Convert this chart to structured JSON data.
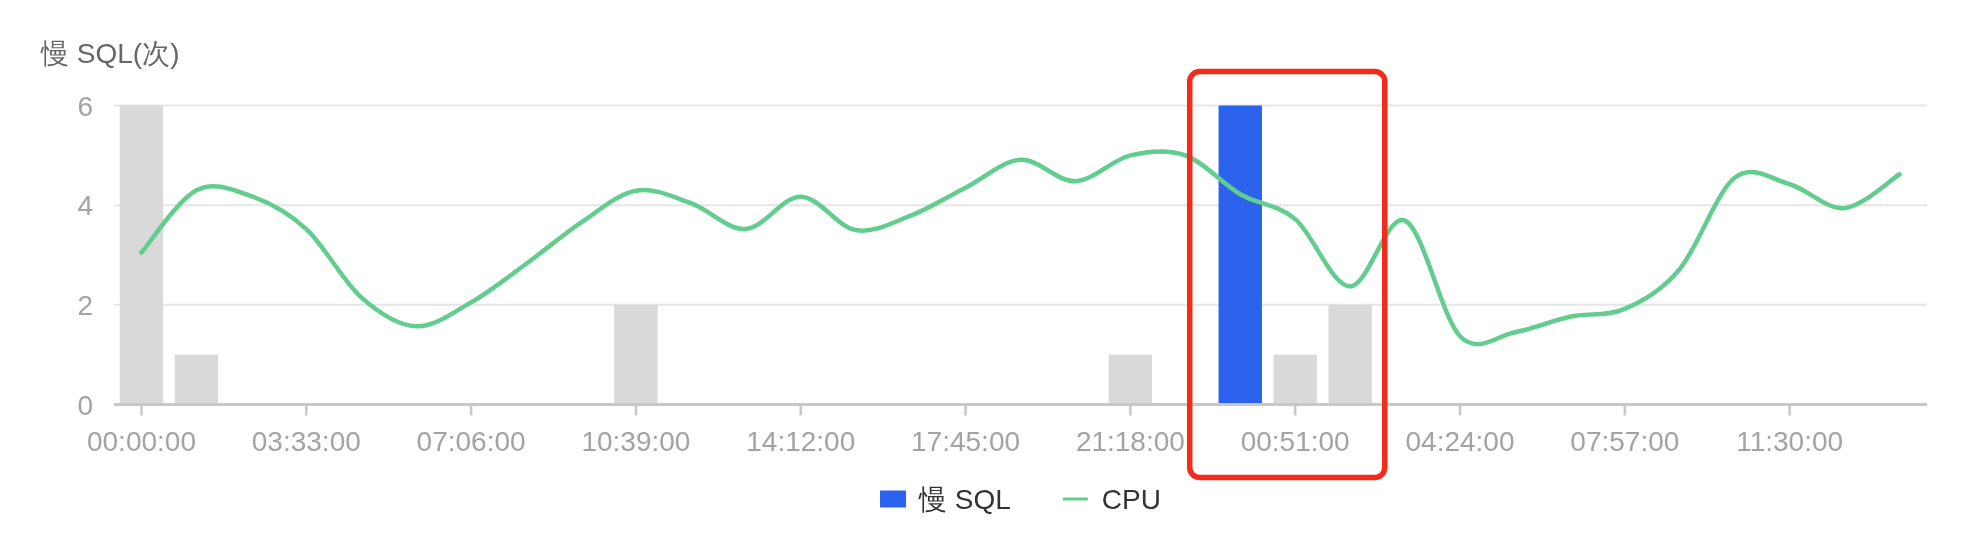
{
  "chart_data": {
    "type": "bar",
    "ylabel": "慢 SQL(次)",
    "categories": [
      "00:00:00",
      null,
      null,
      "03:33:00",
      null,
      null,
      "07:06:00",
      null,
      null,
      "10:39:00",
      null,
      null,
      "14:12:00",
      null,
      null,
      "17:45:00",
      null,
      null,
      "21:18:00",
      null,
      null,
      "00:51:00",
      null,
      null,
      "04:24:00",
      null,
      null,
      "07:57:00",
      null,
      null,
      "11:30:00",
      null,
      null
    ],
    "ylim": [
      0,
      6
    ],
    "yticks": [
      0,
      2,
      4,
      6
    ],
    "grid": "y",
    "legend": "bottom",
    "series": [
      {
        "name": "慢 SQL",
        "color": "#2b63ee",
        "values": [
          6,
          1,
          null,
          null,
          null,
          null,
          null,
          null,
          null,
          2,
          null,
          null,
          null,
          null,
          null,
          null,
          null,
          null,
          1,
          null,
          6,
          1,
          2,
          null,
          null,
          null,
          null,
          null,
          null,
          null,
          null,
          null,
          null
        ],
        "colors": [
          "#d9d9d9",
          "#d9d9d9",
          null,
          null,
          null,
          null,
          null,
          null,
          null,
          "#d9d9d9",
          null,
          null,
          null,
          null,
          null,
          null,
          null,
          null,
          "#d9d9d9",
          null,
          "#2b63ee",
          "#d9d9d9",
          "#d9d9d9",
          null,
          null,
          null,
          null,
          null,
          null,
          null,
          null,
          null,
          null
        ]
      },
      {
        "name": "CPU",
        "type": "line",
        "color": "#62cd8f",
        "values": [
          3.05,
          4.3,
          4.18,
          3.52,
          2.15,
          1.57,
          2.05,
          2.82,
          3.65,
          4.29,
          4.04,
          3.52,
          4.17,
          3.5,
          3.79,
          4.35,
          4.91,
          4.48,
          5.0,
          5.0,
          4.22,
          3.72,
          2.37,
          3.69,
          1.37,
          1.45,
          1.76,
          1.92,
          2.72,
          4.55,
          4.42,
          3.94,
          4.62
        ]
      }
    ]
  }
}
